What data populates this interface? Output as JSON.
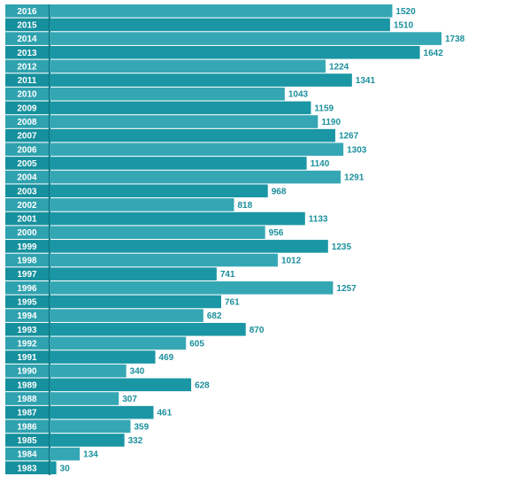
{
  "chart_data": {
    "type": "bar",
    "orientation": "horizontal",
    "categories": [
      "2016",
      "2015",
      "2014",
      "2013",
      "2012",
      "2011",
      "2010",
      "2009",
      "2008",
      "2007",
      "2006",
      "2005",
      "2004",
      "2003",
      "2002",
      "2001",
      "2000",
      "1999",
      "1998",
      "1997",
      "1996",
      "1995",
      "1994",
      "1993",
      "1992",
      "1991",
      "1990",
      "1989",
      "1988",
      "1987",
      "1986",
      "1985",
      "1984",
      "1983"
    ],
    "values": [
      1520,
      1510,
      1738,
      1642,
      1224,
      1341,
      1043,
      1159,
      1190,
      1267,
      1303,
      1140,
      1291,
      968,
      818,
      1133,
      956,
      1235,
      1012,
      741,
      1257,
      761,
      682,
      870,
      605,
      469,
      340,
      628,
      307,
      461,
      359,
      332,
      134,
      30
    ],
    "title": "",
    "xlabel": "",
    "ylabel": "",
    "xlim": [
      0,
      1738
    ],
    "grid": false,
    "colors": {
      "bar_dark": "#1a96a4",
      "bar_light": "#35a7b4",
      "label_dark": "#16909d",
      "label_light": "#2fa2af",
      "value_text": "#1a8f9c"
    }
  }
}
